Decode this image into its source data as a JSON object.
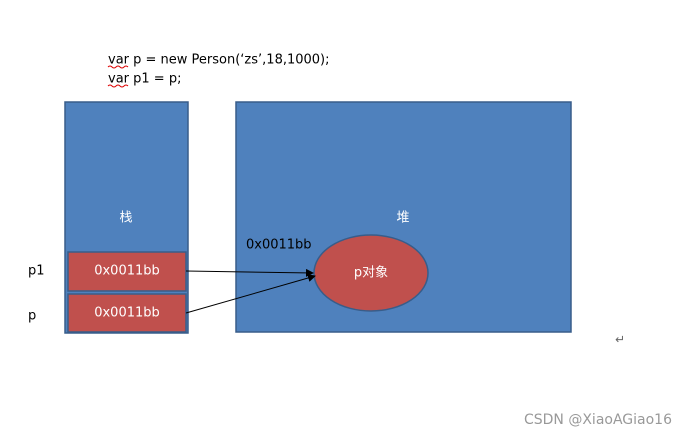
{
  "code": [
    "var  p = new Person(‘zs’,18,1000);",
    "var p1 = p;"
  ],
  "stack": {
    "label": "栈",
    "cells": [
      {
        "var": "p1",
        "value": "0x0011bb"
      },
      {
        "var": "p",
        "value": "0x0011bb"
      }
    ]
  },
  "heap": {
    "label": "堆",
    "address": "0x0011bb",
    "object": "p对象"
  },
  "return_mark": "↵",
  "watermark": "CSDN @XiaoAGiao16"
}
